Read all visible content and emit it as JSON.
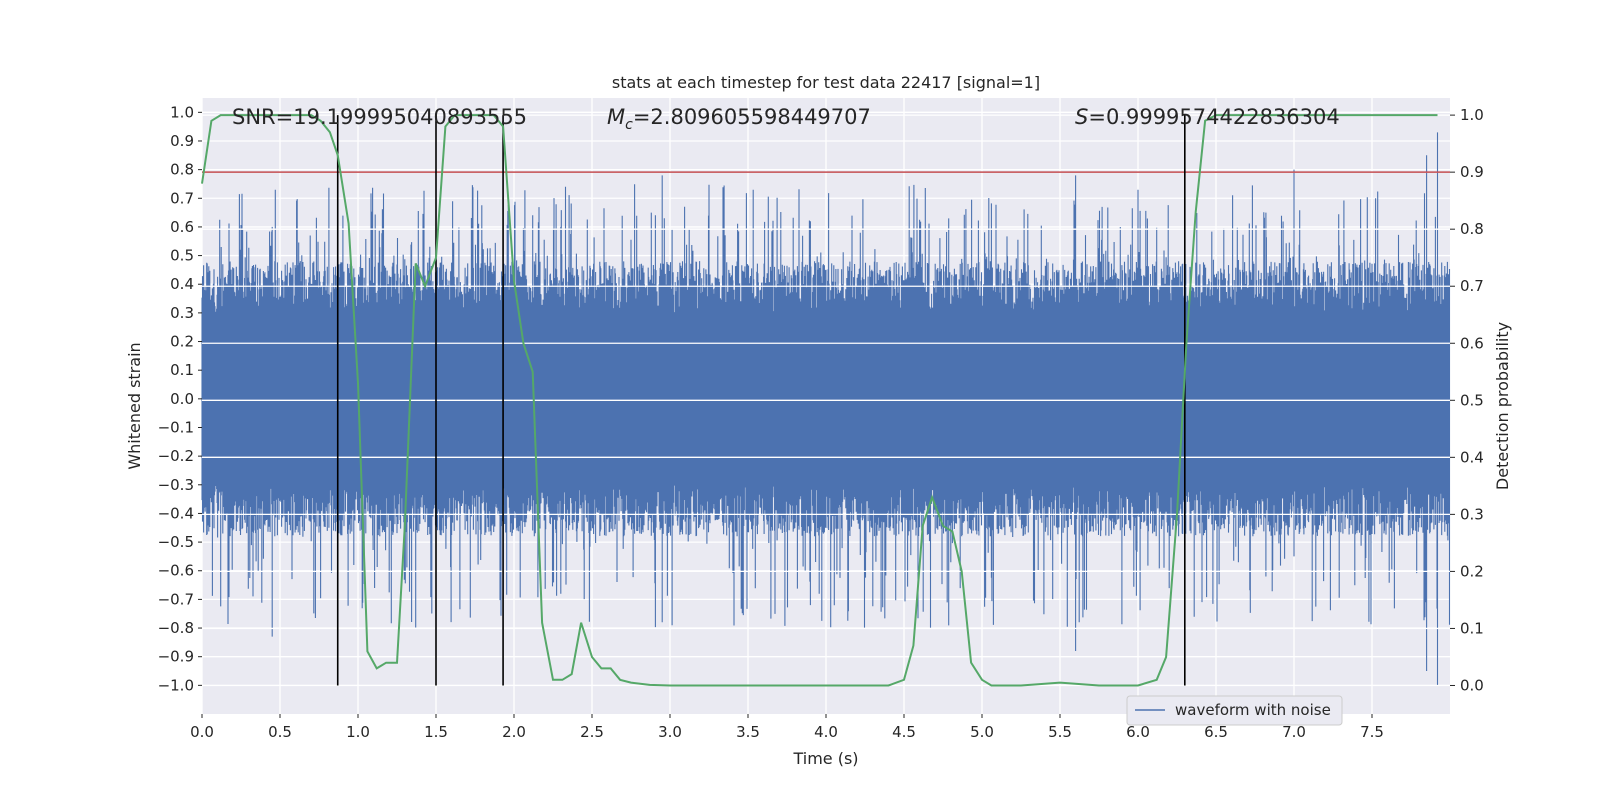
{
  "chart_data": {
    "type": "line",
    "title": "stats at each timestep for test data 22417 [signal=1]",
    "xlabel": "Time (s)",
    "ylabel": "Whitened strain",
    "ylabel_right": "Detection probability",
    "xlim": [
      0.0,
      8.0
    ],
    "ylim": [
      -1.1,
      1.05
    ],
    "ylim_right": [
      -0.05,
      1.03
    ],
    "x_ticks": [
      "0.0",
      "0.5",
      "1.0",
      "1.5",
      "2.0",
      "2.5",
      "3.0",
      "3.5",
      "4.0",
      "4.5",
      "5.0",
      "5.5",
      "6.0",
      "6.5",
      "7.0",
      "7.5"
    ],
    "y_ticks": [
      "1.0",
      "0.9",
      "0.8",
      "0.7",
      "0.6",
      "0.5",
      "0.4",
      "0.3",
      "0.2",
      "0.1",
      "0.0",
      "−0.1",
      "−0.2",
      "−0.3",
      "−0.4",
      "−0.5",
      "−0.6",
      "−0.7",
      "−0.8",
      "−0.9",
      "−1.0"
    ],
    "y_ticks_right": [
      "1.0",
      "0.9",
      "0.8",
      "0.7",
      "0.6",
      "0.5",
      "0.4",
      "0.3",
      "0.2",
      "0.1",
      "0.0"
    ],
    "annotations": {
      "snr_label": "SNR",
      "snr_value": "=19.199995040893555",
      "mc_symbol": "M",
      "mc_sub": "c",
      "mc_value": "=2.809605598449707",
      "s_symbol": "S",
      "s_value": "=0.9999574422836304"
    },
    "threshold": 0.9,
    "vertical_lines": [
      0.87,
      1.5,
      1.93,
      6.3
    ],
    "legend": {
      "label": "waveform with noise",
      "placement": "lower-right"
    },
    "series": [
      {
        "name": "waveform with noise",
        "color": "#4c72b0",
        "axis": "left",
        "description": "dense whitened strain noise, amplitude about ±0.45 with spikes to ±1.0"
      },
      {
        "name": "detection probability",
        "color": "#55a868",
        "axis": "right",
        "x": [
          0.0,
          0.06,
          0.12,
          0.3,
          0.5,
          0.7,
          0.76,
          0.82,
          0.87,
          0.94,
          1.0,
          1.06,
          1.12,
          1.18,
          1.25,
          1.3,
          1.37,
          1.43,
          1.5,
          1.56,
          1.62,
          1.68,
          1.75,
          1.81,
          1.87,
          1.93,
          2.0,
          2.06,
          2.12,
          2.18,
          2.25,
          2.31,
          2.37,
          2.43,
          2.5,
          2.56,
          2.62,
          2.68,
          2.75,
          2.87,
          3.0,
          3.25,
          3.5,
          3.75,
          4.0,
          4.25,
          4.4,
          4.5,
          4.56,
          4.62,
          4.68,
          4.75,
          4.81,
          4.87,
          4.93,
          5.0,
          5.06,
          5.25,
          5.5,
          5.75,
          6.0,
          6.12,
          6.18,
          6.25,
          6.31,
          6.37,
          6.43,
          6.5,
          6.62,
          6.75,
          7.0,
          7.25,
          7.5,
          7.75,
          7.92
        ],
        "values": [
          0.88,
          0.99,
          1.0,
          1.0,
          1.0,
          1.0,
          0.99,
          0.97,
          0.93,
          0.81,
          0.53,
          0.06,
          0.03,
          0.04,
          0.04,
          0.28,
          0.74,
          0.7,
          0.75,
          0.98,
          1.0,
          1.0,
          1.0,
          1.0,
          1.0,
          0.98,
          0.71,
          0.6,
          0.55,
          0.11,
          0.01,
          0.01,
          0.02,
          0.11,
          0.05,
          0.03,
          0.03,
          0.01,
          0.005,
          0.001,
          0.0,
          0.0,
          0.0,
          0.0,
          0.0,
          0.0,
          0.0,
          0.01,
          0.07,
          0.28,
          0.33,
          0.28,
          0.27,
          0.2,
          0.04,
          0.01,
          0.0,
          0.0,
          0.005,
          0.0,
          0.0,
          0.01,
          0.05,
          0.3,
          0.6,
          0.83,
          0.99,
          1.0,
          1.0,
          1.0,
          1.0,
          1.0,
          1.0,
          1.0,
          1.0
        ]
      }
    ]
  }
}
